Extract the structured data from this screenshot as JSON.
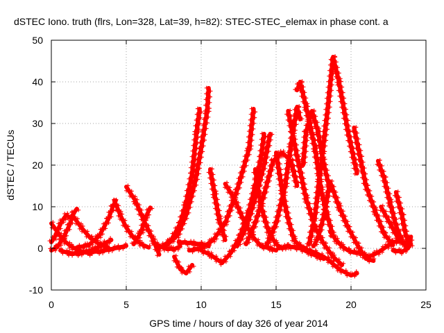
{
  "chart_data": {
    "type": "scatter",
    "title": "dSTEC Iono. truth (flrs, Lon=328, Lat=39, h=82): STEC-STEC_elemax in phase cont. a",
    "xlabel": "GPS time / hours of day 326 of year 2014",
    "ylabel": "dSTEC  / TECUs",
    "xlim": [
      0,
      25
    ],
    "ylim": [
      -10,
      50
    ],
    "xticks": [
      "0",
      "5",
      "10",
      "15",
      "20",
      "25"
    ],
    "yticks": [
      "-10",
      "0",
      "10",
      "20",
      "30",
      "40",
      "50"
    ],
    "grid": true,
    "marker": "+",
    "color": "#ff0000",
    "series": [
      {
        "x": [
          0.0,
          0.3,
          0.8,
          1.3,
          1.8,
          2.3,
          2.6
        ],
        "y": [
          6,
          4.5,
          2,
          0.5,
          -0.5,
          -1,
          -1.2
        ]
      },
      {
        "x": [
          0.0,
          0.2,
          0.4,
          0.7,
          1.0,
          1.2
        ],
        "y": [
          1.5,
          2.5,
          4.2,
          6.5,
          8,
          7.5
        ]
      },
      {
        "x": [
          0.0,
          0.4,
          0.8,
          1.2,
          1.5,
          1.7
        ],
        "y": [
          -0.5,
          0.3,
          2.5,
          5.5,
          8.5,
          9.5
        ]
      },
      {
        "x": [
          0.6,
          1.2,
          1.8,
          2.4,
          3.0,
          3.6,
          4.0
        ],
        "y": [
          -0.5,
          -1.2,
          -1.3,
          -0.8,
          0,
          1.3,
          2
        ]
      },
      {
        "x": [
          1.5,
          2.5,
          3.2,
          3.8,
          4.1,
          4.3
        ],
        "y": [
          0,
          0.8,
          3,
          7,
          10,
          11.5
        ]
      },
      {
        "x": [
          1.4,
          2.0,
          2.6,
          3.2,
          3.8
        ],
        "y": [
          8,
          5,
          2.5,
          1,
          0.2
        ]
      },
      {
        "x": [
          2.5,
          3.2,
          3.8,
          4.5,
          5.0
        ],
        "y": [
          -0.8,
          -0.8,
          -0.3,
          0.2,
          0.6
        ]
      },
      {
        "x": [
          4.2,
          4.6,
          5.0,
          5.5,
          6.0,
          6.5
        ],
        "y": [
          11.5,
          8,
          5,
          2.5,
          1,
          0.2
        ]
      },
      {
        "x": [
          5.0,
          5.6,
          6.2,
          6.8,
          7.2
        ],
        "y": [
          14.8,
          11.5,
          6.5,
          2,
          -1.5
        ]
      },
      {
        "x": [
          5.5,
          6.0,
          6.3,
          6.6
        ],
        "y": [
          1,
          4,
          7.5,
          9.8
        ]
      },
      {
        "x": [
          7.0,
          7.6,
          8.2,
          8.6
        ],
        "y": [
          1,
          0,
          -0.2,
          0.5
        ]
      },
      {
        "x": [
          7.2,
          8.0,
          8.6,
          9.0,
          9.4,
          9.7,
          9.9
        ],
        "y": [
          0,
          2,
          6,
          11,
          18,
          28,
          33.5
        ]
      },
      {
        "x": [
          7.6,
          8.4,
          9.0,
          9.6,
          10.0,
          10.4,
          10.5
        ],
        "y": [
          0.5,
          3,
          8,
          16,
          24,
          33,
          38.5
        ]
      },
      {
        "x": [
          8.2,
          8.6,
          9.0,
          9.4
        ],
        "y": [
          -2,
          -5,
          -6,
          -4
        ]
      },
      {
        "x": [
          8.5,
          9.5,
          10.0,
          10.5
        ],
        "y": [
          1.5,
          1.2,
          1,
          0.5
        ]
      },
      {
        "x": [
          9.2,
          10.0,
          10.8,
          11.6,
          12.4,
          13.2,
          13.5
        ],
        "y": [
          -0.5,
          0,
          2,
          6,
          14,
          24,
          33.5
        ]
      },
      {
        "x": [
          10.0,
          10.6,
          11.4,
          12.0,
          12.6,
          13.2,
          13.6,
          14.0,
          14.2
        ],
        "y": [
          -0.5,
          -1.5,
          -3.5,
          -1,
          3,
          9,
          15,
          22,
          27.5
        ]
      },
      {
        "x": [
          10.6,
          10.9,
          11.2,
          11.6
        ],
        "y": [
          19,
          13,
          7,
          2
        ]
      },
      {
        "x": [
          11.6,
          12.2,
          12.8,
          13.4,
          14.0,
          14.6,
          15.0
        ],
        "y": [
          15.5,
          12,
          7,
          3,
          0.5,
          0,
          -0.5
        ]
      },
      {
        "x": [
          12.4,
          13.0,
          13.6,
          14.2,
          14.6
        ],
        "y": [
          0.5,
          5,
          12,
          20,
          27.5
        ]
      },
      {
        "x": [
          13.0,
          13.6,
          14.2,
          14.8,
          15.4,
          16.0,
          16.4
        ],
        "y": [
          1,
          6,
          13,
          21,
          23,
          21,
          15
        ]
      },
      {
        "x": [
          13.6,
          14.0,
          14.5,
          15.0,
          15.4,
          15.8
        ],
        "y": [
          19,
          10,
          4,
          1,
          0,
          0.5
        ]
      },
      {
        "x": [
          14.4,
          15.0,
          15.6,
          16.0,
          16.4,
          16.6
        ],
        "y": [
          1,
          6,
          15,
          25,
          34,
          31
        ]
      },
      {
        "x": [
          15.0,
          15.4,
          15.8,
          16.2,
          16.6,
          17.0
        ],
        "y": [
          23,
          14,
          7,
          2,
          0.5,
          0
        ]
      },
      {
        "x": [
          15.2,
          15.8,
          16.6,
          17.2,
          17.8,
          18.2
        ],
        "y": [
          0,
          0.5,
          0,
          -1,
          -2,
          -2.5
        ]
      },
      {
        "x": [
          15.8,
          16.4,
          17.0,
          17.6,
          18.2,
          18.8,
          19.4
        ],
        "y": [
          33,
          22,
          12,
          5,
          1,
          -2,
          -4
        ]
      },
      {
        "x": [
          16.4,
          16.6,
          17.0,
          17.6,
          18.0,
          18.4,
          18.8
        ],
        "y": [
          38,
          40,
          34,
          24,
          14,
          8,
          3
        ]
      },
      {
        "x": [
          16.8,
          17.0,
          17.4,
          17.8,
          18.2,
          18.6
        ],
        "y": [
          20,
          28,
          33,
          28,
          20,
          14
        ]
      },
      {
        "x": [
          16.8,
          17.6,
          18.4,
          19.2,
          20.0,
          20.4
        ],
        "y": [
          0,
          -1,
          -2.5,
          -5,
          -6.5,
          -6
        ]
      },
      {
        "x": [
          17.5,
          17.8,
          18.2,
          18.6,
          19.2,
          19.8,
          20.4,
          21.0,
          21.5
        ],
        "y": [
          0.5,
          2.5,
          8,
          16,
          10,
          5,
          1,
          -2.5,
          -3
        ]
      },
      {
        "x": [
          17.2,
          17.6,
          18.0,
          18.4,
          18.8,
          19.2,
          19.8,
          20.4
        ],
        "y": [
          1,
          8,
          20,
          32,
          46,
          40,
          28,
          18
        ]
      },
      {
        "x": [
          18.6,
          19.0,
          19.4,
          19.8,
          20.2,
          20.6
        ],
        "y": [
          4,
          2,
          0.5,
          -0.5,
          -1,
          -1
        ]
      },
      {
        "x": [
          20.2,
          20.6,
          21.0,
          21.6,
          22.2,
          22.8
        ],
        "y": [
          29,
          22,
          15,
          9,
          3.5,
          0.8
        ]
      },
      {
        "x": [
          20.5,
          21.2,
          21.8,
          22.4,
          22.8,
          23.2
        ],
        "y": [
          -1,
          -2,
          -1,
          0.5,
          1.5,
          1.8
        ]
      },
      {
        "x": [
          21.8,
          22.2,
          22.6,
          23.0,
          23.4,
          23.7
        ],
        "y": [
          21,
          17,
          11,
          5.5,
          1.8,
          0.5
        ]
      },
      {
        "x": [
          22.0,
          22.6,
          23.2,
          23.8,
          24.0
        ],
        "y": [
          10,
          6,
          2,
          0.3,
          1
        ]
      },
      {
        "x": [
          23.0,
          23.4,
          23.6,
          23.9
        ],
        "y": [
          13.5,
          8,
          4,
          0.5
        ]
      },
      {
        "x": [
          22.8,
          23.4,
          23.8,
          24.0
        ],
        "y": [
          -0.5,
          -0.8,
          0,
          2.8
        ]
      }
    ]
  }
}
